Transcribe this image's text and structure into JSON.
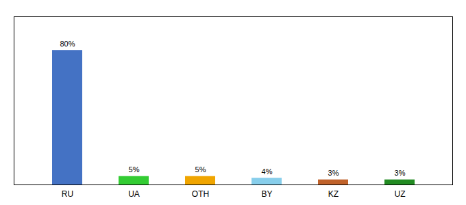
{
  "chart_data": {
    "type": "bar",
    "categories": [
      "RU",
      "UA",
      "OTH",
      "BY",
      "KZ",
      "UZ"
    ],
    "values": [
      80,
      5,
      5,
      4,
      3,
      3
    ],
    "value_labels": [
      "80%",
      "5%",
      "5%",
      "4%",
      "3%",
      "3%"
    ],
    "colors": [
      "#4472c4",
      "#33cc33",
      "#f0a500",
      "#87ceeb",
      "#c0622a",
      "#228b22"
    ],
    "ylim": [
      0,
      100
    ],
    "data_labels": true,
    "tick_labels": "x",
    "grid": false
  }
}
